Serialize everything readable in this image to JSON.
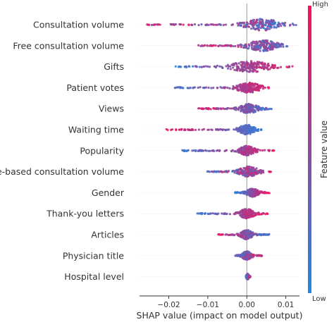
{
  "chart_data": {
    "type": "scatter",
    "subtype": "shap-beeswarm",
    "xlabel": "SHAP value (impact on model output)",
    "xlim": [
      -0.0275,
      0.0135
    ],
    "xticks": [
      -0.02,
      -0.01,
      0.0,
      0.01
    ],
    "xtick_labels": [
      "−0.02",
      "−0.01",
      "0.00",
      "0.01"
    ],
    "colorbar": {
      "title": "Feature value",
      "high_label": "High",
      "low_label": "Low",
      "low_color": "#1e88e5",
      "high_color": "#ff0d57"
    },
    "features": [
      {
        "name": "Consultation volume",
        "min": -0.026,
        "max": 0.0127,
        "peak": 0.004,
        "spread": 0.0045,
        "width": 14,
        "lowSide": "right",
        "mix": 0.6
      },
      {
        "name": "Free consultation volume",
        "min": -0.0128,
        "max": 0.0105,
        "peak": 0.004,
        "spread": 0.004,
        "width": 13,
        "lowSide": "right",
        "mix": 0.6
      },
      {
        "name": "Gifts",
        "min": -0.0183,
        "max": 0.0118,
        "peak": 0.001,
        "spread": 0.005,
        "width": 13,
        "lowSide": "left",
        "mix": 0.3
      },
      {
        "name": "Patient votes",
        "min": -0.0185,
        "max": 0.0065,
        "peak": 0.0005,
        "spread": 0.003,
        "width": 12,
        "lowSide": "left",
        "mix": 0.3
      },
      {
        "name": "Views",
        "min": -0.0125,
        "max": 0.0065,
        "peak": 0.0005,
        "spread": 0.0025,
        "width": 11,
        "lowSide": "right",
        "mix": 0.4
      },
      {
        "name": "Waiting time",
        "min": -0.021,
        "max": 0.004,
        "peak": 0.0,
        "spread": 0.002,
        "width": 12,
        "lowSide": "right",
        "mix": 0.15
      },
      {
        "name": "Popularity",
        "min": -0.0165,
        "max": 0.007,
        "peak": 0.0,
        "spread": 0.002,
        "width": 11,
        "lowSide": "left",
        "mix": 0.4
      },
      {
        "name": "Fee-based consultation volume",
        "min": -0.0102,
        "max": 0.0065,
        "peak": 0.0005,
        "spread": 0.0025,
        "width": 12,
        "lowSide": "left",
        "mix": 0.6
      },
      {
        "name": "Gender",
        "min": -0.003,
        "max": 0.0058,
        "peak": 0.0015,
        "spread": 0.0015,
        "width": 10,
        "lowSide": "left",
        "mix": 0.05
      },
      {
        "name": "Thank-you letters",
        "min": -0.0128,
        "max": 0.0055,
        "peak": 0.0,
        "spread": 0.002,
        "width": 11,
        "lowSide": "left",
        "mix": 0.25
      },
      {
        "name": "Articles",
        "min": -0.0075,
        "max": 0.0058,
        "peak": 0.0,
        "spread": 0.0015,
        "width": 11,
        "lowSide": "right",
        "mix": 0.35
      },
      {
        "name": "Physician title",
        "min": -0.003,
        "max": 0.004,
        "peak": 0.0,
        "spread": 0.0012,
        "width": 10,
        "lowSide": "left",
        "mix": 0.5
      },
      {
        "name": "Hospital level",
        "min": -0.0002,
        "max": 0.0009,
        "peak": 0.0002,
        "spread": 0.0003,
        "width": 6,
        "lowSide": "left",
        "mix": 0.3
      }
    ]
  }
}
